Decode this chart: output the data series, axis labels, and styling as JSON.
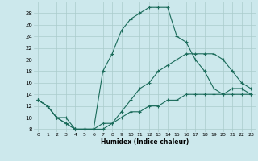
{
  "xlabel": "Humidex (Indice chaleur)",
  "background_color": "#cce8ec",
  "grid_color": "#aacccc",
  "line_color": "#1a6b5a",
  "xlim": [
    -0.5,
    23.5
  ],
  "ylim": [
    7.5,
    30
  ],
  "xticks": [
    0,
    1,
    2,
    3,
    4,
    5,
    6,
    7,
    8,
    9,
    10,
    11,
    12,
    13,
    14,
    15,
    16,
    17,
    18,
    19,
    20,
    21,
    22,
    23
  ],
  "yticks": [
    8,
    10,
    12,
    14,
    16,
    18,
    20,
    22,
    24,
    26,
    28
  ],
  "line1_x": [
    0,
    1,
    2,
    3,
    4,
    5,
    6,
    7,
    8,
    9,
    10,
    11,
    12,
    13,
    14,
    15,
    16,
    17,
    18,
    19,
    20,
    21,
    22,
    23
  ],
  "line1_y": [
    13,
    12,
    10,
    10,
    8,
    8,
    8,
    18,
    21,
    25,
    27,
    28,
    29,
    29,
    29,
    24,
    23,
    20,
    18,
    15,
    14,
    14,
    14,
    14
  ],
  "line2_x": [
    0,
    1,
    2,
    3,
    4,
    5,
    6,
    7,
    8,
    9,
    10,
    11,
    12,
    13,
    14,
    15,
    16,
    17,
    18,
    19,
    20,
    21,
    22,
    23
  ],
  "line2_y": [
    13,
    12,
    10,
    9,
    8,
    8,
    8,
    9,
    9,
    11,
    13,
    15,
    16,
    18,
    19,
    20,
    21,
    21,
    21,
    21,
    20,
    18,
    16,
    15
  ],
  "line3_x": [
    0,
    1,
    2,
    3,
    4,
    5,
    6,
    7,
    8,
    9,
    10,
    11,
    12,
    13,
    14,
    15,
    16,
    17,
    18,
    19,
    20,
    21,
    22,
    23
  ],
  "line3_y": [
    13,
    12,
    10,
    9,
    8,
    8,
    8,
    8,
    9,
    10,
    11,
    11,
    12,
    12,
    13,
    13,
    14,
    14,
    14,
    14,
    14,
    15,
    15,
    14
  ]
}
